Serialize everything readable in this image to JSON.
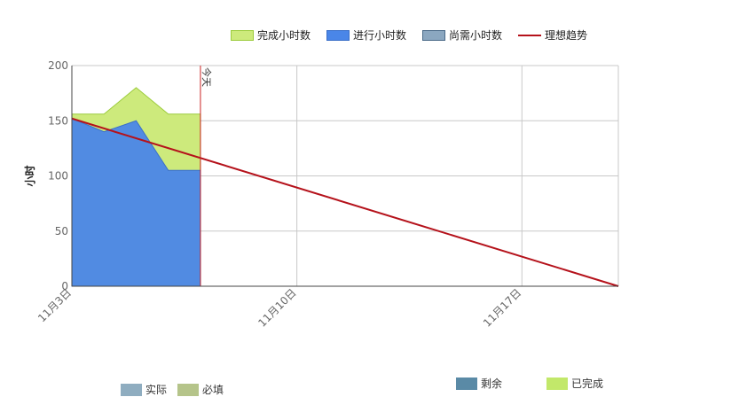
{
  "chart_data": {
    "type": "area",
    "title": "",
    "xlabel": "",
    "ylabel": "小时",
    "ylim": [
      0,
      200
    ],
    "yticks": [
      0,
      50,
      100,
      150,
      200
    ],
    "xticks": [
      {
        "day": 0,
        "label": "11月3日"
      },
      {
        "day": 7,
        "label": "11月10日"
      },
      {
        "day": 14,
        "label": "11月17日"
      }
    ],
    "x_max_day": 17,
    "days": [
      0,
      1,
      2,
      3,
      4
    ],
    "series": [
      {
        "name": "完成小时数",
        "color": "#cdea7c",
        "values": [
          156,
          156,
          180,
          156,
          156
        ]
      },
      {
        "name": "进行小时数",
        "color": "#4a86e8",
        "values": [
          152,
          140,
          150,
          105,
          105
        ]
      },
      {
        "name": "尚需小时数",
        "color": "#8ba7c0",
        "values": []
      }
    ],
    "ideal_trend": {
      "name": "理想趋势",
      "color": "#b5121b",
      "start": [
        0,
        152
      ],
      "end": [
        17,
        0
      ]
    },
    "today_marker": {
      "day": 4,
      "label": "今天",
      "color": "#cc2222"
    },
    "grid": true,
    "legend_position": "top-right"
  },
  "legend_top": [
    {
      "label": "完成小时数",
      "color": "#cdea7c",
      "border": "#9ccc3c",
      "kind": "box"
    },
    {
      "label": "进行小时数",
      "color": "#4a86e8",
      "border": "#3a6fc8",
      "kind": "box"
    },
    {
      "label": "尚需小时数",
      "color": "#8ba7c0",
      "border": "#4a6a88",
      "kind": "box"
    },
    {
      "label": "理想趋势",
      "color": "#b5121b",
      "border": "#b5121b",
      "kind": "line"
    }
  ],
  "legend_bottom_left": [
    {
      "label": "实际",
      "color": "#8fadc0"
    },
    {
      "label": "必填",
      "color": "#b5c48a"
    }
  ],
  "legend_bottom_right": [
    {
      "label": "剩余",
      "color": "#5a8aa6"
    },
    {
      "label": "已完成",
      "color": "#c2e86a"
    }
  ]
}
